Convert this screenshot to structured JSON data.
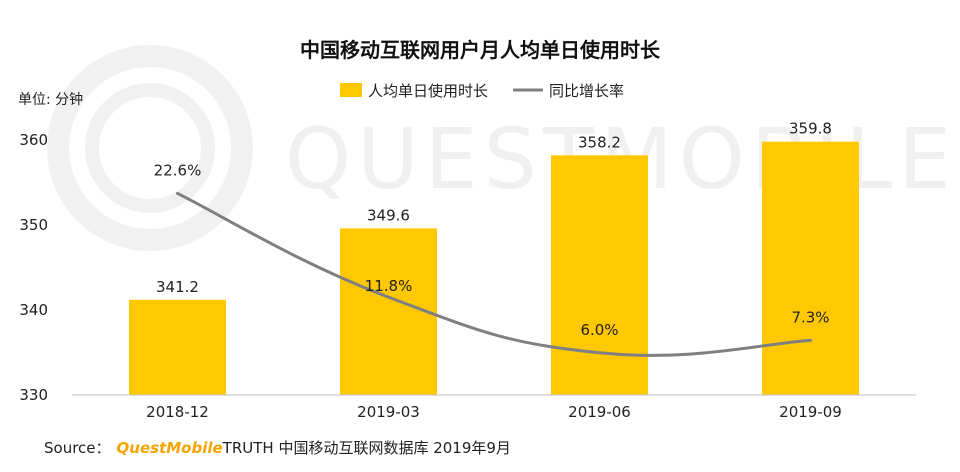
{
  "chart_data": {
    "type": "bar",
    "title": "中国移动互联网用户月人均单日使用时长",
    "unit_label": "单位: 分钟",
    "categories": [
      "2018-12",
      "2019-03",
      "2019-06",
      "2019-09"
    ],
    "series": [
      {
        "name": "人均单日使用时长",
        "type": "bar",
        "color": "#FFC800",
        "values": [
          341.2,
          349.6,
          358.2,
          359.8
        ],
        "labels": [
          "341.2",
          "349.6",
          "358.2",
          "359.8"
        ]
      },
      {
        "name": "同比增长率",
        "type": "line",
        "color": "#808080",
        "values": [
          22.6,
          11.8,
          6.0,
          7.3
        ],
        "labels": [
          "22.6%",
          "11.8%",
          "6.0%",
          "7.3%"
        ]
      }
    ],
    "ylim": [
      330,
      360
    ],
    "yticks": [
      "330",
      "340",
      "350",
      "360"
    ],
    "legend_position": "top-center"
  },
  "source": {
    "prefix": "Source：",
    "brand": "QuestMobile",
    "text": "TRUTH 中国移动互联网数据库 2019年9月"
  },
  "watermark": "QUESTMOBILE"
}
